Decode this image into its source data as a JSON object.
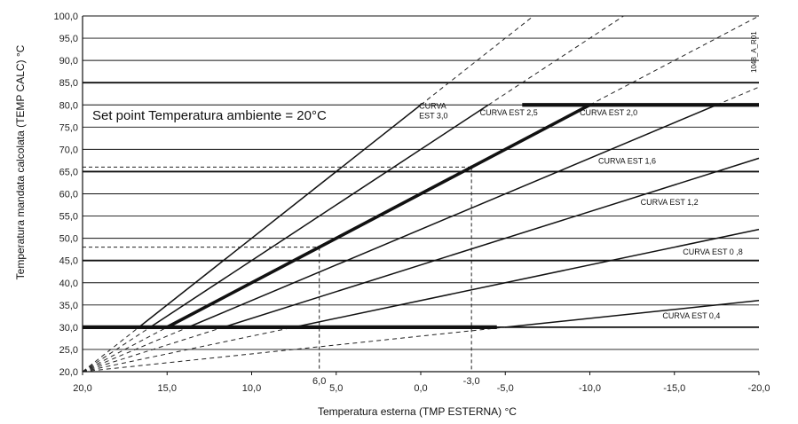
{
  "chart_data": {
    "type": "line",
    "xlabel": "Temperatura esterna (TMP ESTERNA) °C",
    "ylabel": "Temperatura mandata calcolata (TEMP CALC) °C",
    "xlim": [
      20,
      -20
    ],
    "ylim": [
      20,
      100
    ],
    "x_ticks": [
      20,
      15,
      10,
      5,
      0,
      -5,
      -10,
      -15,
      -20
    ],
    "x_tick_labels": [
      "20,0",
      "15,0",
      "10,0",
      "5,0",
      "0,0",
      "-5,0",
      "-10,0",
      "-15,0",
      "-20,0"
    ],
    "y_ticks": [
      20,
      25,
      30,
      35,
      40,
      45,
      50,
      55,
      60,
      65,
      70,
      75,
      80,
      85,
      90,
      95,
      100
    ],
    "y_tick_labels": [
      "20,0",
      "25,0",
      "30,0",
      "35,0",
      "40,0",
      "45,0",
      "50,0",
      "55,0",
      "60,0",
      "65,0",
      "70,0",
      "75,0",
      "80,0",
      "85,0",
      "90,0",
      "95,0",
      "100,0"
    ],
    "thick_gridlines": [
      30,
      45,
      65,
      85
    ],
    "grid": true,
    "annotation": "Set point Temperatura ambiente = 20°C",
    "code_label": "1048_A_R01",
    "limits": {
      "min": 30,
      "max": 80
    },
    "series": [
      {
        "name": "CURVA EST 3,0",
        "label": "CURVA",
        "label2": "EST 3,0",
        "slope": 3.0,
        "highlight": false
      },
      {
        "name": "CURVA EST 2,5",
        "label": "CURVA EST 2,5",
        "slope": 2.5,
        "highlight": false
      },
      {
        "name": "CURVA EST 2,0",
        "label": "CURVA EST 2,0",
        "slope": 2.0,
        "highlight": true
      },
      {
        "name": "CURVA EST 1,6",
        "label": "CURVA EST 1,6",
        "slope": 1.6,
        "highlight": false
      },
      {
        "name": "CURVA EST 1,2",
        "label": "CURVA EST 1,2",
        "slope": 1.2,
        "highlight": false
      },
      {
        "name": "CURVA EST 0,8",
        "label": "CURVA EST 0 ,8",
        "slope": 0.8,
        "highlight": false
      },
      {
        "name": "CURVA EST 0,4",
        "label": "CURVA EST 0,4",
        "slope": 0.4,
        "highlight": false
      }
    ],
    "reference_points": [
      {
        "x": 6,
        "y": 48,
        "x_label": "6,0",
        "y_label": "48"
      },
      {
        "x": -3,
        "y": 66,
        "x_label": "-3,0",
        "y_label": "66"
      }
    ]
  }
}
